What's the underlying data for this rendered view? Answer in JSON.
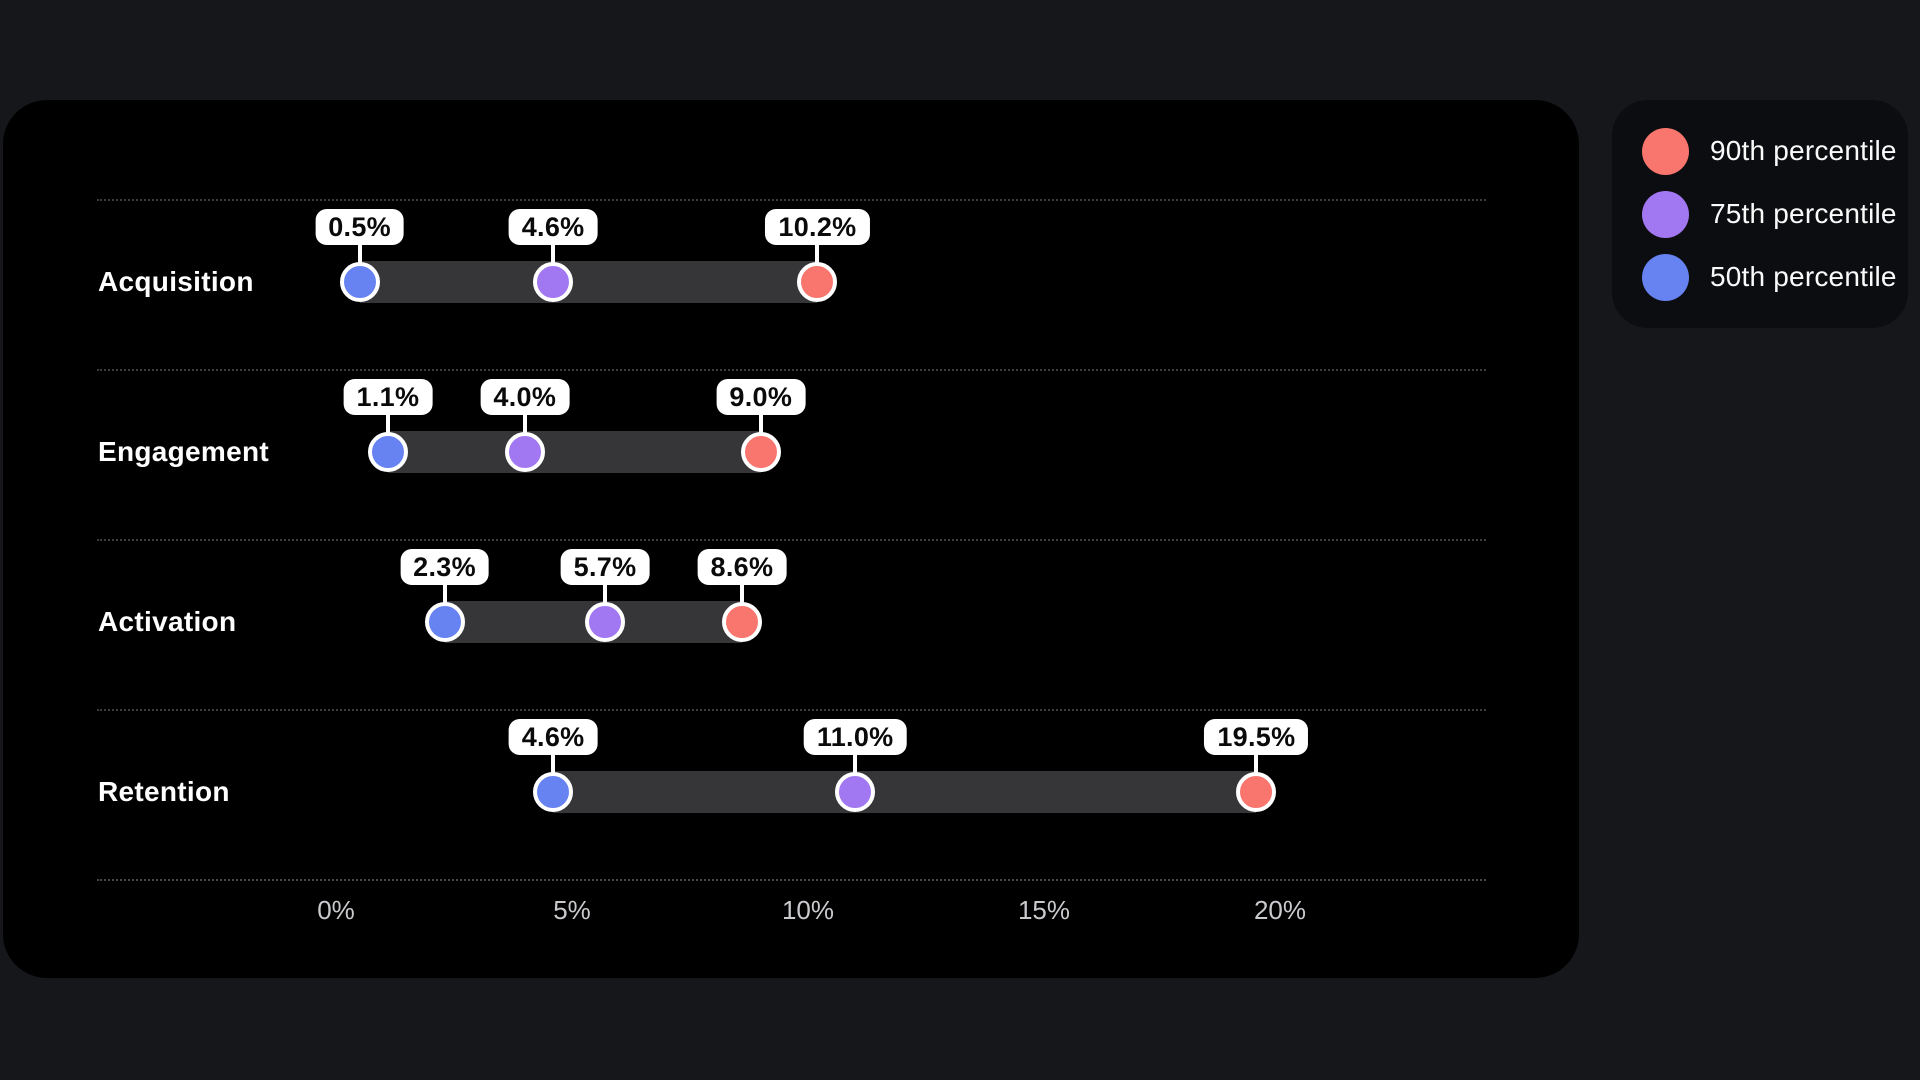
{
  "page": {
    "background": "#15171B"
  },
  "card": {
    "background": "#000000"
  },
  "legend": {
    "background": "#0C0D11",
    "items": [
      {
        "label": "90th percentile",
        "color": "#F8766D"
      },
      {
        "label": "75th percentile",
        "color": "#A278F2"
      },
      {
        "label": "50th percentile",
        "color": "#6782F1"
      }
    ]
  },
  "chart_data": {
    "type": "dumbbell",
    "title": "",
    "categories": [
      "Acquisition",
      "Engagement",
      "Activation",
      "Retention"
    ],
    "series": [
      {
        "name": "50th percentile",
        "color": "#6782F1",
        "values": [
          0.5,
          1.1,
          2.3,
          4.6
        ]
      },
      {
        "name": "75th percentile",
        "color": "#A278F2",
        "values": [
          4.6,
          4.0,
          5.7,
          11.0
        ]
      },
      {
        "name": "90th percentile",
        "color": "#F8766D",
        "values": [
          10.2,
          9.0,
          8.6,
          19.5
        ]
      }
    ],
    "value_labels": [
      [
        "0.5%",
        "4.6%",
        "10.2%"
      ],
      [
        "1.1%",
        "4.0%",
        "9.0%"
      ],
      [
        "2.3%",
        "5.7%",
        "8.6%"
      ],
      [
        "4.6%",
        "11.0%",
        "19.5%"
      ]
    ],
    "xlabel": "",
    "ylabel": "",
    "x_axis": {
      "ticks": [
        {
          "value": 0,
          "label": "0%"
        },
        {
          "value": 5,
          "label": "5%"
        },
        {
          "value": 10,
          "label": "10%"
        },
        {
          "value": 15,
          "label": "15%"
        },
        {
          "value": 20,
          "label": "20%"
        }
      ],
      "range": [
        0,
        24.3
      ]
    },
    "grid": "dotted-row-separators",
    "legend_position": "top-right",
    "bar_color": "#363639",
    "callout_bg": "#FFFFFF",
    "callout_text_color": "#0A0A0A"
  }
}
